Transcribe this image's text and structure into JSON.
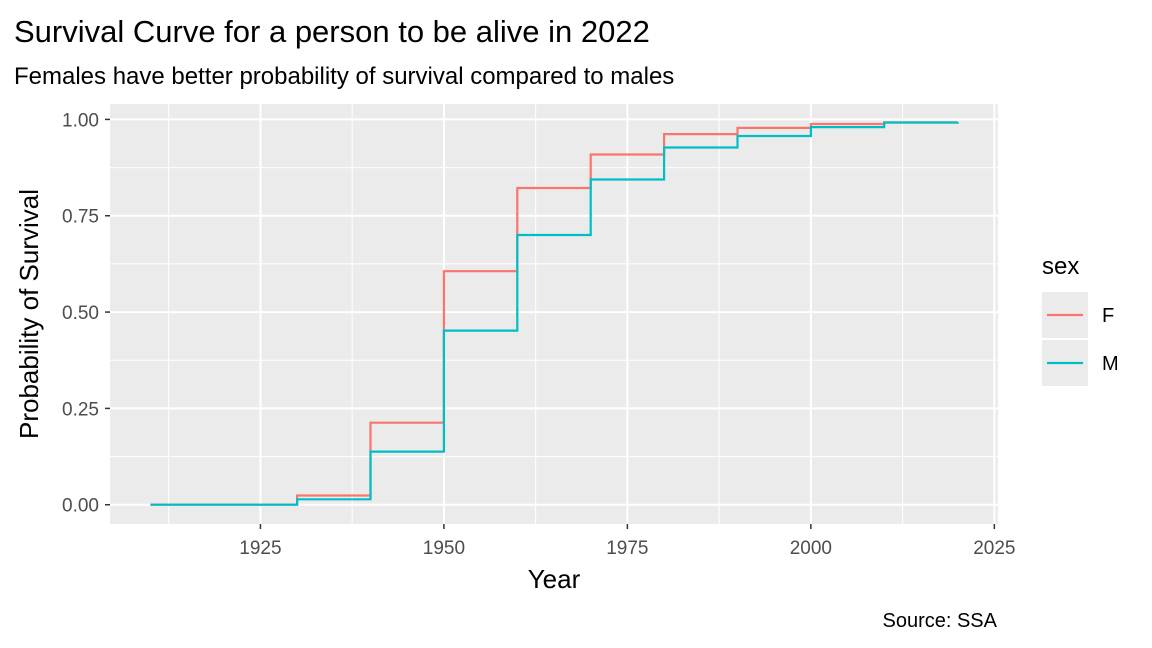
{
  "chart_data": {
    "type": "line",
    "step": "post",
    "title": "Survival Curve for a person to be alive in 2022",
    "subtitle": "Females have better probability of survival compared to males",
    "xlabel": "Year",
    "ylabel": "Probability of Survival",
    "caption": "Source: SSA",
    "xlim": [
      1904.5,
      2025.5
    ],
    "ylim": [
      -0.05,
      1.04
    ],
    "x_ticks": [
      1925,
      1950,
      1975,
      2000,
      2025
    ],
    "x_tick_labels": [
      "1925",
      "1950",
      "1975",
      "2000",
      "2025"
    ],
    "y_ticks": [
      0,
      0.25,
      0.5,
      0.75,
      1.0
    ],
    "y_tick_labels": [
      "0.00",
      "0.25",
      "0.50",
      "0.75",
      "1.00"
    ],
    "grid": true,
    "legend": {
      "title": "sex",
      "position": "right"
    },
    "series": [
      {
        "name": "F",
        "color": "#F8766D",
        "x": [
          1910,
          1920,
          1930,
          1940,
          1950,
          1960,
          1970,
          1980,
          1990,
          2000,
          2010,
          2020
        ],
        "y": [
          0.0,
          0.0,
          0.024,
          0.213,
          0.606,
          0.822,
          0.909,
          0.962,
          0.978,
          0.988,
          0.992,
          0.993
        ]
      },
      {
        "name": "M",
        "color": "#00BFC4",
        "x": [
          1910,
          1920,
          1930,
          1940,
          1950,
          1960,
          1970,
          1980,
          1990,
          2000,
          2010,
          2020
        ],
        "y": [
          0.0,
          0.0,
          0.014,
          0.138,
          0.452,
          0.7,
          0.844,
          0.927,
          0.957,
          0.98,
          0.992,
          0.993
        ]
      }
    ]
  }
}
